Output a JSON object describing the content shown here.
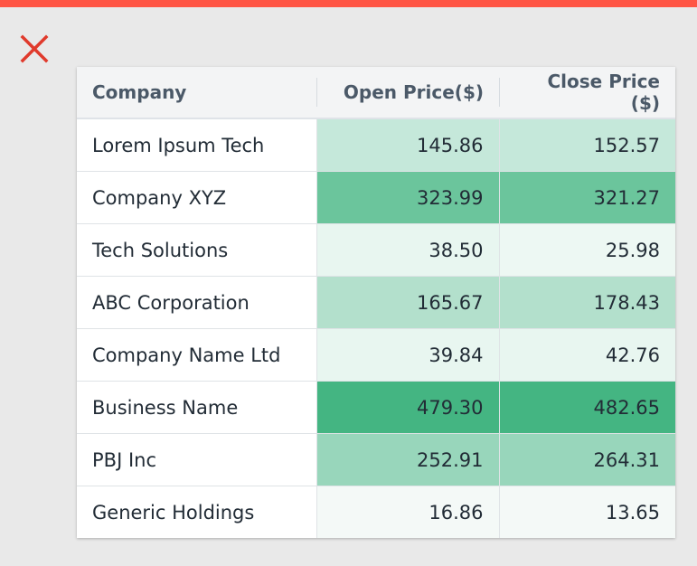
{
  "close_button": {
    "icon": "close-icon",
    "color": "#e03a2c"
  },
  "table": {
    "headers": [
      "Company",
      "Open Price($)",
      "Close Price ($)"
    ],
    "rows": [
      {
        "company": "Lorem Ipsum Tech",
        "open": "145.86",
        "close": "152.57",
        "open_color": "#c5e8da",
        "close_color": "#c5e8da"
      },
      {
        "company": "Company XYZ",
        "open": "323.99",
        "close": "321.27",
        "open_color": "#6bc59c",
        "close_color": "#6bc59c"
      },
      {
        "company": "Tech Solutions",
        "open": "38.50",
        "close": "25.98",
        "open_color": "#e8f6f0",
        "close_color": "#edf8f3"
      },
      {
        "company": "ABC Corporation",
        "open": "165.67",
        "close": "178.43",
        "open_color": "#b3e0cc",
        "close_color": "#b3e0cc"
      },
      {
        "company": "Company Name Ltd",
        "open": "39.84",
        "close": "42.76",
        "open_color": "#e8f6f0",
        "close_color": "#e8f6f0"
      },
      {
        "company": "Business Name",
        "open": "479.30",
        "close": "482.65",
        "open_color": "#44b582",
        "close_color": "#44b582"
      },
      {
        "company": "PBJ Inc",
        "open": "252.91",
        "close": "264.31",
        "open_color": "#98d6bb",
        "close_color": "#98d6bb"
      },
      {
        "company": "Generic Holdings",
        "open": "16.86",
        "close": "13.65",
        "open_color": "#f4f9f7",
        "close_color": "#f4f9f7"
      }
    ]
  }
}
